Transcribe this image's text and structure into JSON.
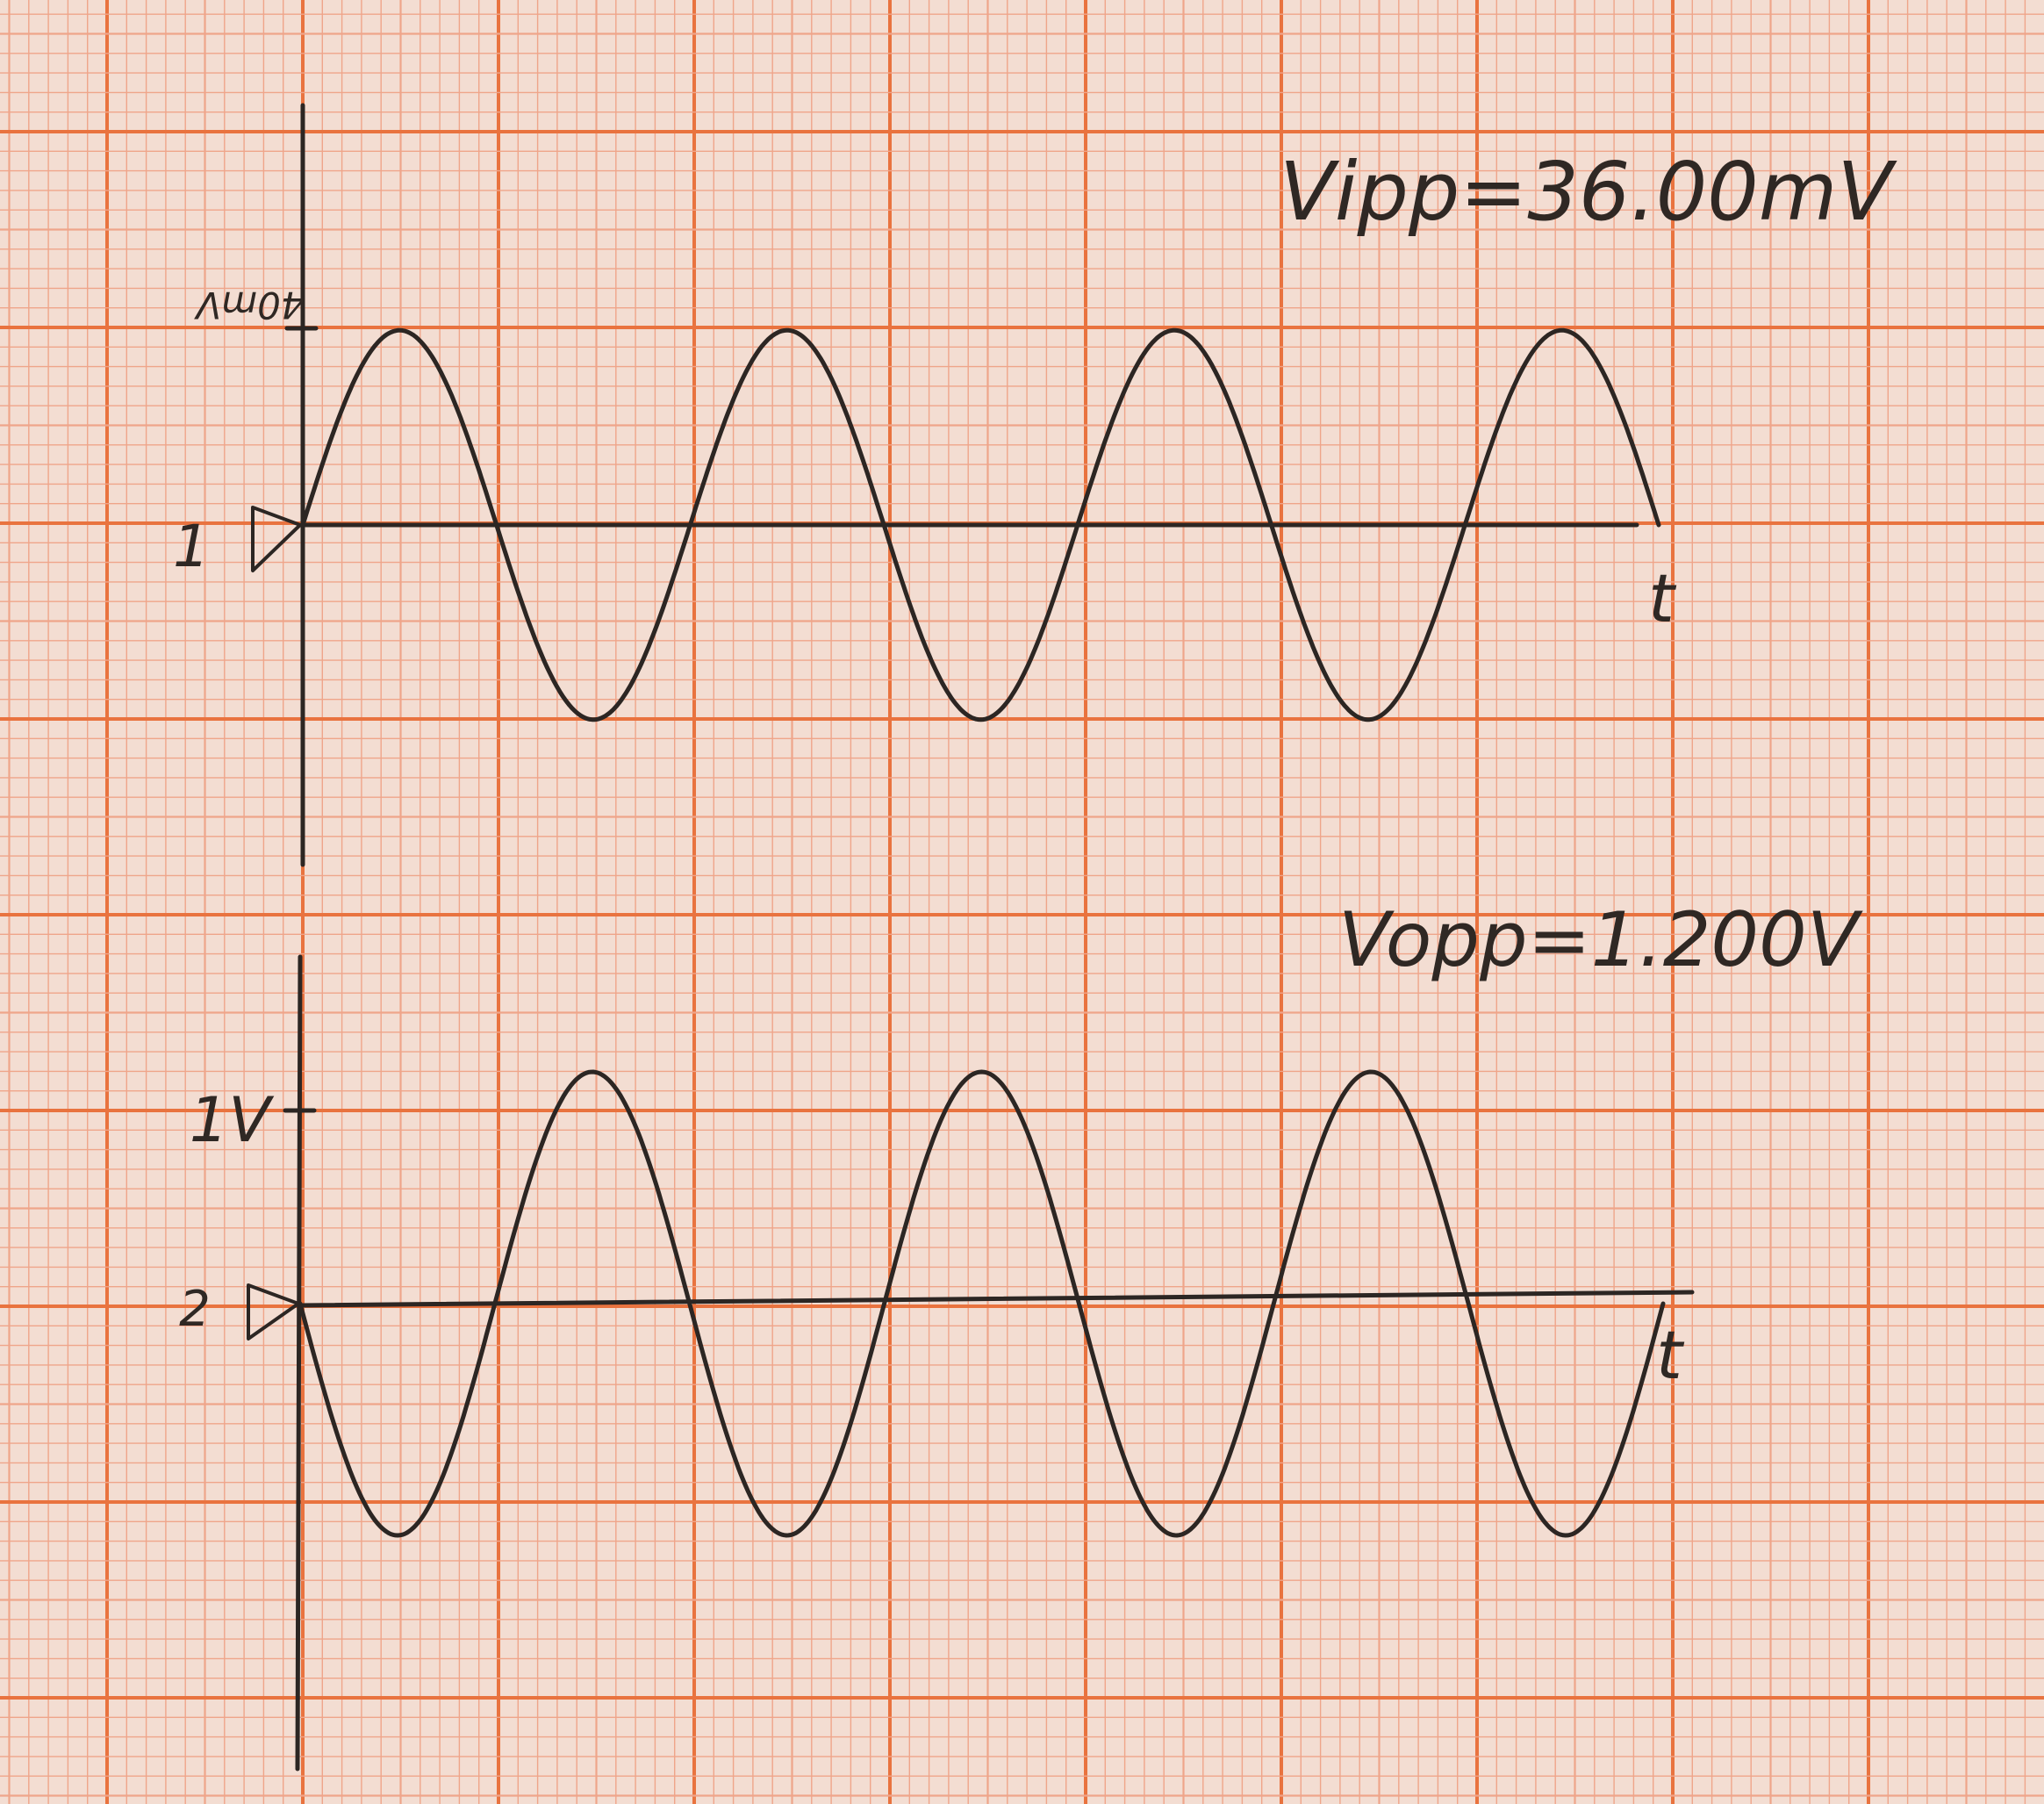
{
  "paper": {
    "background": "#f3ddd2",
    "grid_minor_color": "#efa58a",
    "grid_major_color": "#e9733f",
    "pencil_color": "#2c2623"
  },
  "chart_data": [
    {
      "type": "line",
      "name": "input waveform",
      "annotation": "Vipp=36.00mV",
      "ytick_label": "40mV",
      "ytick_value_mV": 40,
      "zero_marker": "1",
      "xlabel": "t",
      "amplitude_mV": 18,
      "cycles": 3.5,
      "phase": "starts at zero, rising"
    },
    {
      "type": "line",
      "name": "output waveform",
      "annotation": "Vopp=1.200V",
      "ytick_label": "1V",
      "ytick_value_V": 1,
      "zero_marker": "2",
      "xlabel": "t",
      "amplitude_V": 0.6,
      "cycles": 3.5,
      "phase": "starts at zero, falling (inverted)"
    }
  ]
}
